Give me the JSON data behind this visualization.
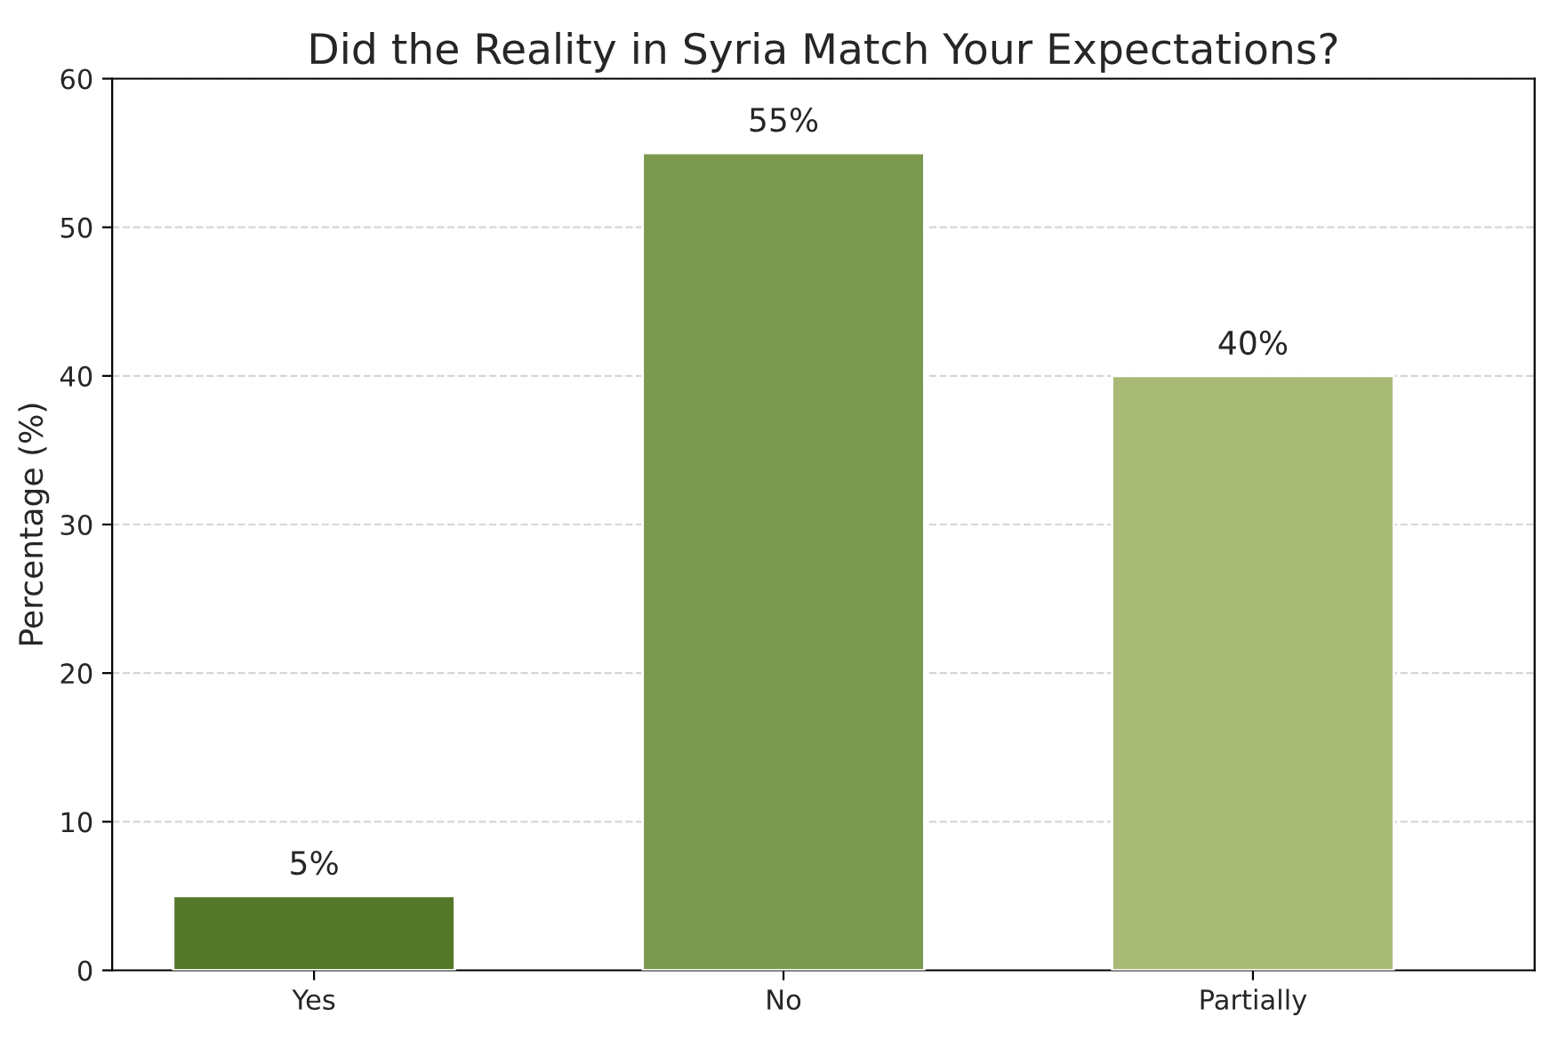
{
  "chart_data": {
    "type": "bar",
    "title": "Did the Reality in Syria Match Your Expectations?",
    "ylabel": "Percentage (%)",
    "categories": [
      "Yes",
      "No",
      "Partially"
    ],
    "values": [
      5,
      55,
      40
    ],
    "colors": [
      "#55772a",
      "#7b9a50",
      "#a9ba76"
    ],
    "value_labels": [
      "5%",
      "55%",
      "40%"
    ],
    "ylim": [
      0,
      60
    ],
    "yticks": [
      0,
      10,
      20,
      30,
      40,
      50,
      60
    ],
    "grid": "y"
  }
}
